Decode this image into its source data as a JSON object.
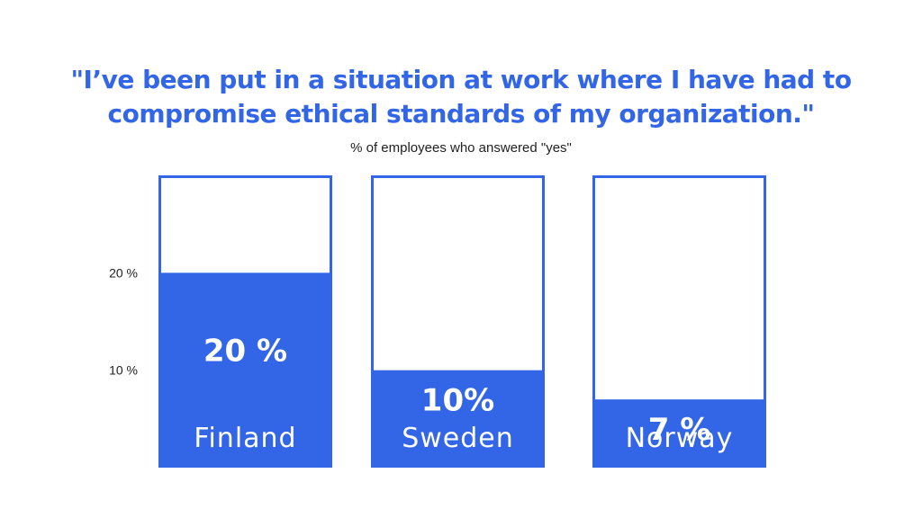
{
  "title_line1": "\"I’ve been put in a situation at work where I have had to",
  "title_line2": "compromise ethical standards of my organization.\"",
  "subtitle": "% of employees who answered \"yes\"",
  "colors": {
    "accent": "#3366E6",
    "background": "#FFFFFF",
    "text": "#222222"
  },
  "chart_data": {
    "type": "bar",
    "title": "\"I’ve been put in a situation at work where I have had to compromise ethical standards of my organization.\"",
    "subtitle": "% of employees who answered \"yes\"",
    "categories": [
      "Finland",
      "Sweden",
      "Norway"
    ],
    "values": [
      20,
      10,
      7
    ],
    "data_labels": [
      "20 %",
      "10%",
      "7 %"
    ],
    "y_ticks": [
      {
        "value": 10,
        "label": "10 %"
      },
      {
        "value": 20,
        "label": "20 %"
      }
    ],
    "ylim": [
      0,
      30
    ],
    "grid": false,
    "legend": "none"
  }
}
